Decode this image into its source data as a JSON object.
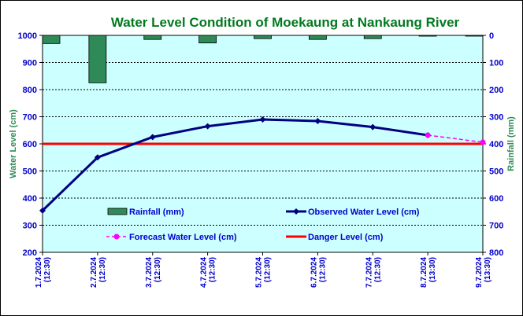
{
  "chart_data": {
    "type": "combo-bar-line",
    "title": "Water Level Condition of Moekaung at Nankaung River",
    "categories": [
      [
        "1.7.2024",
        "(12:30)"
      ],
      [
        "2.7.2024",
        "(12:30)"
      ],
      [
        "3.7.2024",
        "(12:30)"
      ],
      [
        "4.7.2024",
        "(12:30)"
      ],
      [
        "5.7.2024",
        "(12:30)"
      ],
      [
        "6.7.2024",
        "(12:30)"
      ],
      [
        "7.7.2024",
        "(12:30)"
      ],
      [
        "8.7.2024",
        "(13:30)"
      ],
      [
        "9.7.2024",
        "(13:30)"
      ]
    ],
    "ylabel": "Water Level (cm)",
    "y2label": "Rainfall (mm)",
    "ylim": [
      200,
      1000
    ],
    "y2lim": [
      0,
      800
    ],
    "y2_inverted": true,
    "yticks": [
      200,
      300,
      400,
      500,
      600,
      700,
      800,
      900,
      1000
    ],
    "y2ticks": [
      0,
      100,
      200,
      300,
      400,
      500,
      600,
      700,
      800
    ],
    "grid": true,
    "series": [
      {
        "name": "Rainfall (mm)",
        "kind": "bar",
        "axis": "right",
        "color": "#2e8b57",
        "values": [
          30,
          175,
          15,
          28,
          12,
          15,
          12,
          3,
          0
        ]
      },
      {
        "name": "Observed Water Level (cm)",
        "kind": "line",
        "axis": "left",
        "color": "#000080",
        "values": [
          354,
          550,
          625,
          665,
          690,
          684,
          662,
          632,
          null
        ]
      },
      {
        "name": "Forecast Water Level (cm)",
        "kind": "dashed-line",
        "axis": "left",
        "color": "#ff00ff",
        "points": [
          [
            7,
            632
          ],
          [
            8,
            606
          ]
        ]
      },
      {
        "name": "Danger Level (cm)",
        "kind": "hline",
        "axis": "left",
        "color": "#ff0000",
        "value": 600
      }
    ],
    "legend_position": "inside-bottom",
    "colors": {
      "plot_background": "#ccffff",
      "grid": "#000000",
      "tick_text": "#0000cc",
      "axis_title": "#2e8b57",
      "title": "#007a1e"
    }
  }
}
